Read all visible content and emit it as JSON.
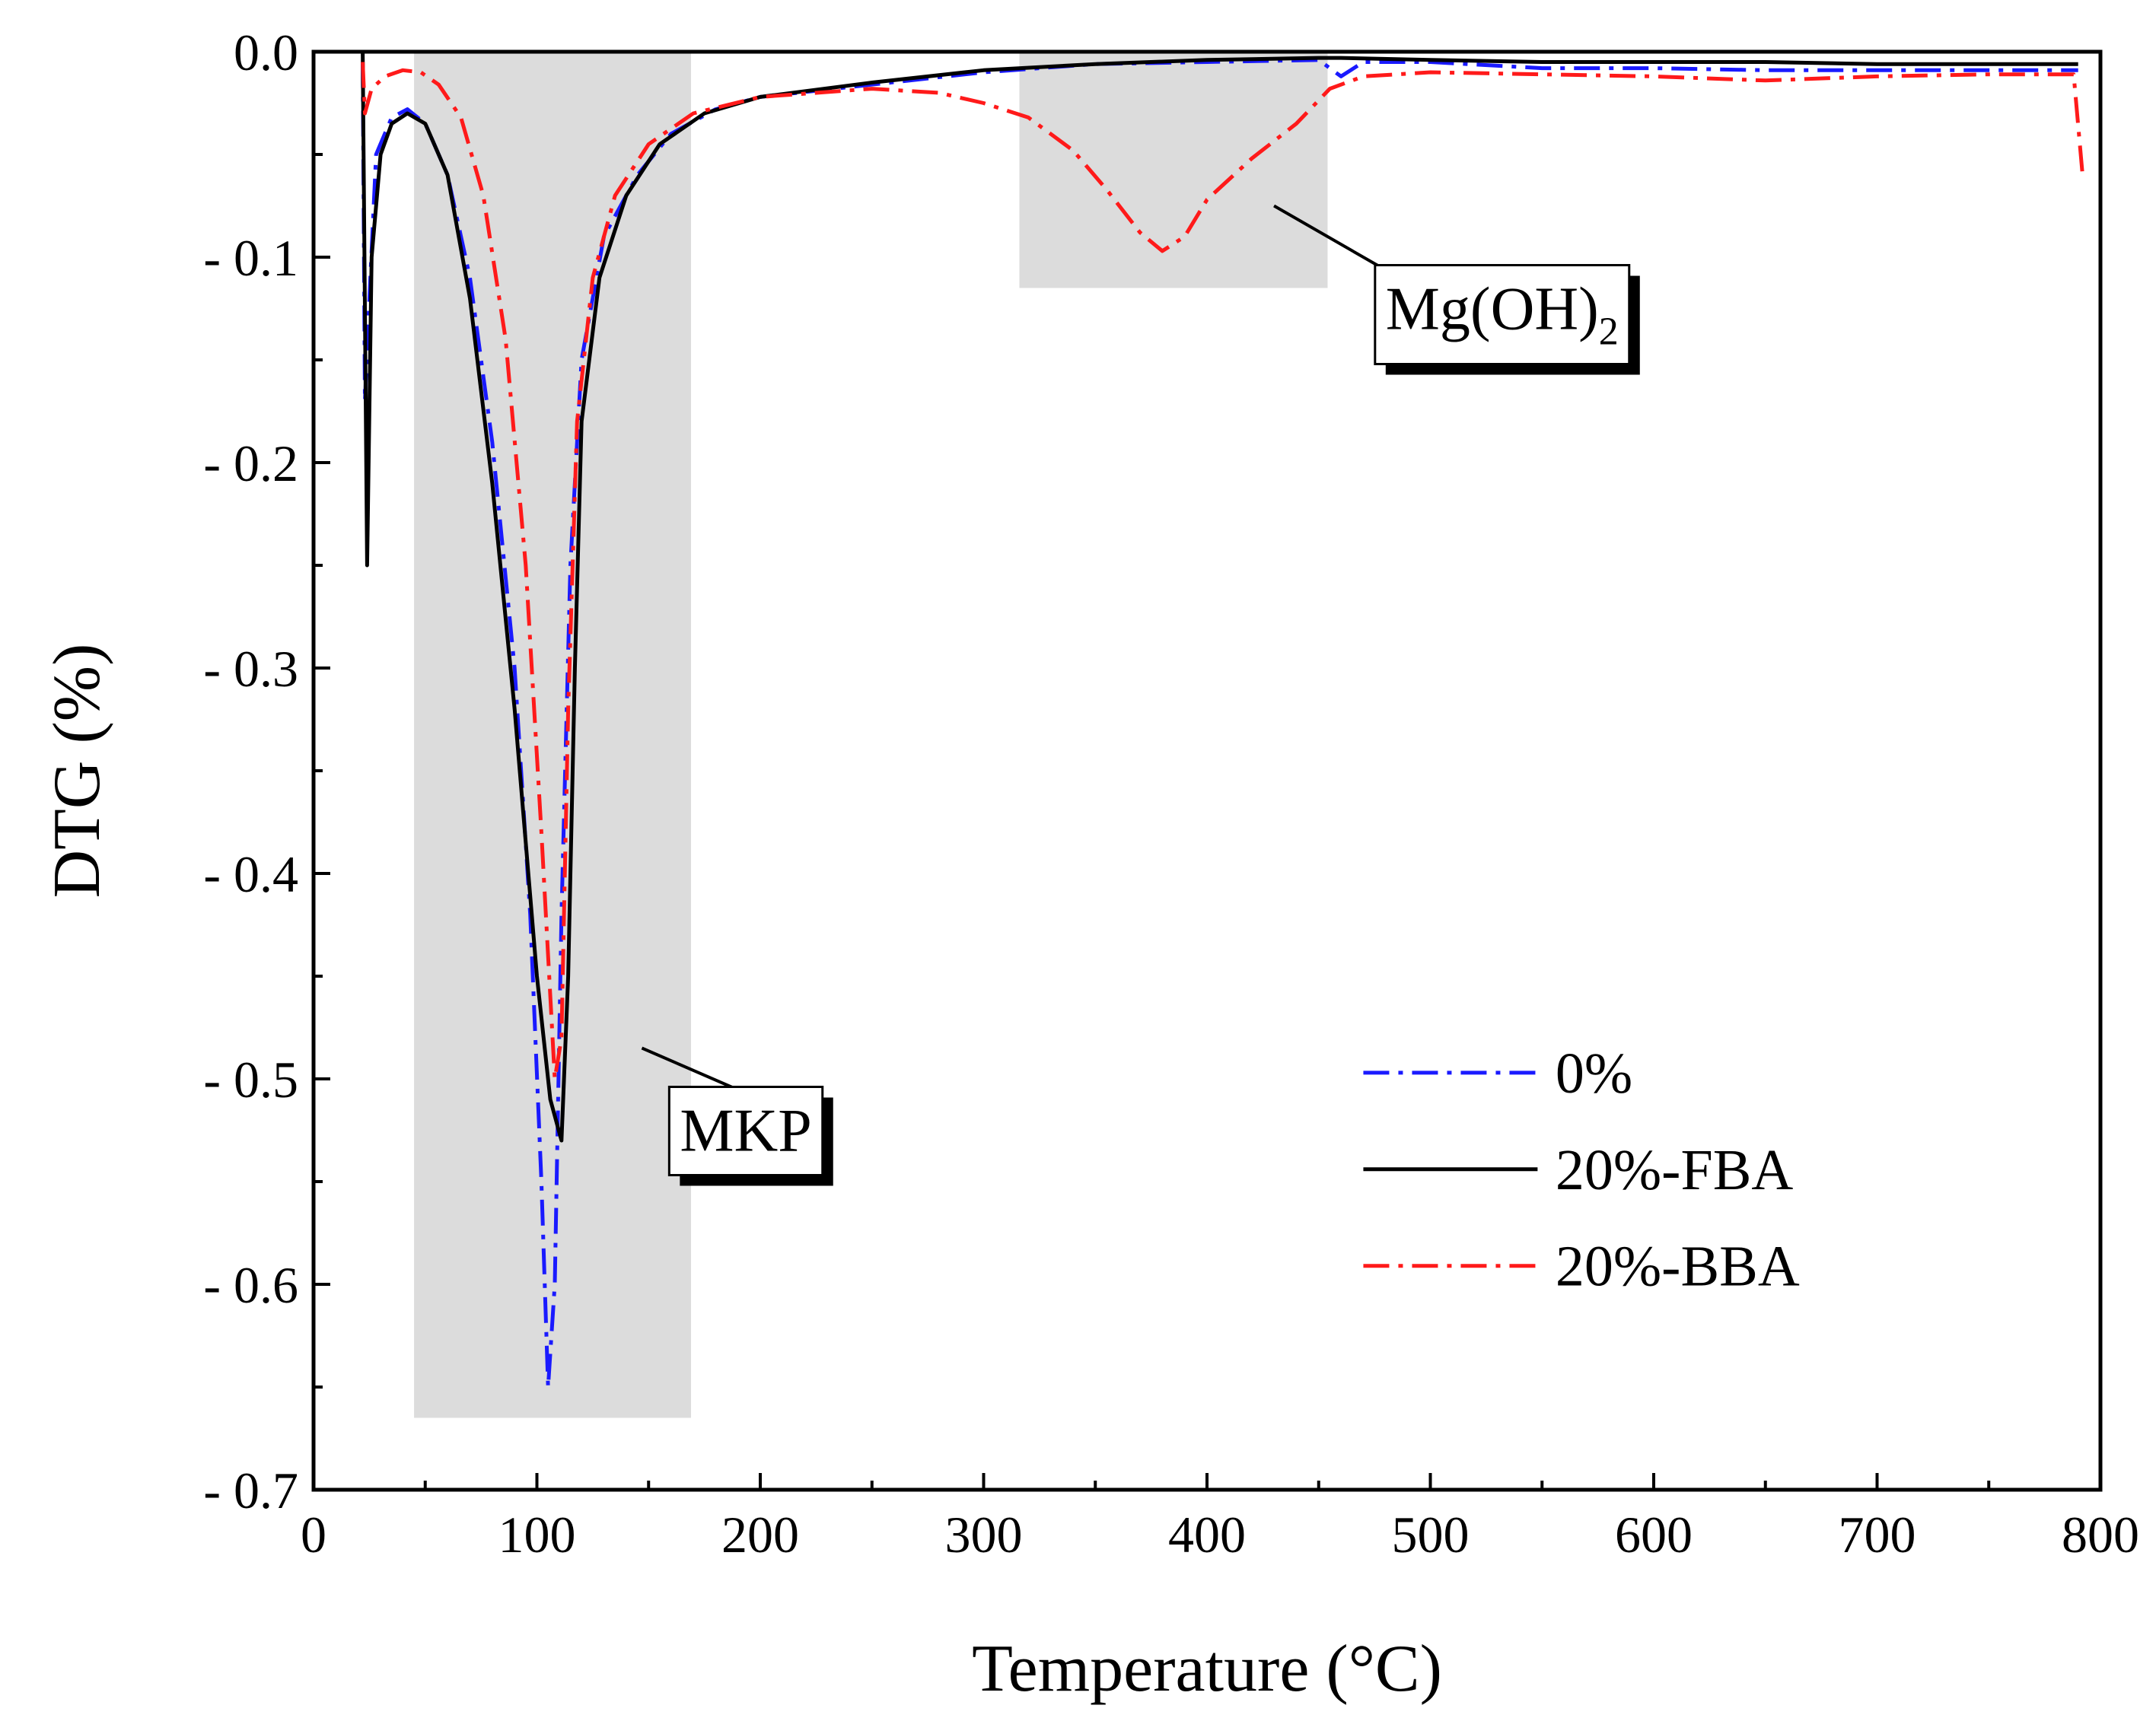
{
  "chart_data": {
    "type": "line",
    "title": "",
    "xlabel": "Temperature (°C)",
    "ylabel": "DTG (%)",
    "xlim": [
      0,
      800
    ],
    "ylim": [
      -0.7,
      0.0
    ],
    "x_ticks": [
      0,
      100,
      200,
      300,
      400,
      500,
      600,
      700,
      800
    ],
    "x_tick_labels": [
      "0",
      "100",
      "200",
      "300",
      "400",
      "500",
      "600",
      "700",
      "800"
    ],
    "y_ticks": [
      0.0,
      -0.1,
      -0.2,
      -0.3,
      -0.4,
      -0.5,
      -0.6,
      -0.7
    ],
    "y_tick_labels": [
      "0.0",
      "- 0.1",
      "- 0.2",
      "- 0.3",
      "- 0.4",
      "- 0.5",
      "- 0.6",
      "- 0.7"
    ],
    "grid": false,
    "legend_position": "lower-right",
    "series": [
      {
        "name": "0%",
        "color": "#1a1aff",
        "dash": "dash-dot",
        "points": [
          [
            22,
            -0.005
          ],
          [
            23,
            -0.17
          ],
          [
            25,
            -0.12
          ],
          [
            28,
            -0.05
          ],
          [
            35,
            -0.032
          ],
          [
            42,
            -0.028
          ],
          [
            50,
            -0.035
          ],
          [
            60,
            -0.06
          ],
          [
            70,
            -0.11
          ],
          [
            80,
            -0.19
          ],
          [
            90,
            -0.3
          ],
          [
            97,
            -0.42
          ],
          [
            102,
            -0.55
          ],
          [
            105,
            -0.65
          ],
          [
            108,
            -0.6
          ],
          [
            111,
            -0.42
          ],
          [
            115,
            -0.25
          ],
          [
            120,
            -0.15
          ],
          [
            130,
            -0.09
          ],
          [
            145,
            -0.06
          ],
          [
            160,
            -0.04
          ],
          [
            180,
            -0.028
          ],
          [
            200,
            -0.022
          ],
          [
            250,
            -0.016
          ],
          [
            300,
            -0.01
          ],
          [
            350,
            -0.006
          ],
          [
            400,
            -0.005
          ],
          [
            450,
            -0.004
          ],
          [
            460,
            -0.012
          ],
          [
            470,
            -0.005
          ],
          [
            500,
            -0.005
          ],
          [
            550,
            -0.008
          ],
          [
            600,
            -0.008
          ],
          [
            650,
            -0.009
          ],
          [
            700,
            -0.009
          ],
          [
            750,
            -0.009
          ],
          [
            790,
            -0.009
          ]
        ]
      },
      {
        "name": "20%-FBA",
        "color": "#000000",
        "dash": "solid",
        "points": [
          [
            22,
            0.0
          ],
          [
            24,
            -0.25
          ],
          [
            26,
            -0.1
          ],
          [
            30,
            -0.05
          ],
          [
            35,
            -0.035
          ],
          [
            42,
            -0.03
          ],
          [
            50,
            -0.035
          ],
          [
            60,
            -0.06
          ],
          [
            70,
            -0.12
          ],
          [
            80,
            -0.21
          ],
          [
            90,
            -0.32
          ],
          [
            100,
            -0.45
          ],
          [
            106,
            -0.51
          ],
          [
            111,
            -0.53
          ],
          [
            114,
            -0.45
          ],
          [
            117,
            -0.3
          ],
          [
            120,
            -0.18
          ],
          [
            128,
            -0.11
          ],
          [
            140,
            -0.07
          ],
          [
            155,
            -0.045
          ],
          [
            175,
            -0.03
          ],
          [
            200,
            -0.022
          ],
          [
            250,
            -0.015
          ],
          [
            300,
            -0.009
          ],
          [
            350,
            -0.006
          ],
          [
            400,
            -0.004
          ],
          [
            450,
            -0.003
          ],
          [
            460,
            -0.003
          ],
          [
            500,
            -0.004
          ],
          [
            550,
            -0.005
          ],
          [
            600,
            -0.005
          ],
          [
            650,
            -0.005
          ],
          [
            700,
            -0.006
          ],
          [
            750,
            -0.006
          ],
          [
            790,
            -0.006
          ]
        ]
      },
      {
        "name": "20%-BBA",
        "color": "#ff1a1a",
        "dash": "dash-dot",
        "points": [
          [
            22,
            -0.005
          ],
          [
            23,
            -0.03
          ],
          [
            26,
            -0.018
          ],
          [
            32,
            -0.012
          ],
          [
            40,
            -0.009
          ],
          [
            48,
            -0.01
          ],
          [
            56,
            -0.016
          ],
          [
            66,
            -0.032
          ],
          [
            76,
            -0.07
          ],
          [
            86,
            -0.14
          ],
          [
            95,
            -0.25
          ],
          [
            102,
            -0.38
          ],
          [
            108,
            -0.5
          ],
          [
            111,
            -0.48
          ],
          [
            114,
            -0.32
          ],
          [
            118,
            -0.18
          ],
          [
            125,
            -0.11
          ],
          [
            135,
            -0.07
          ],
          [
            150,
            -0.045
          ],
          [
            170,
            -0.03
          ],
          [
            200,
            -0.022
          ],
          [
            250,
            -0.018
          ],
          [
            280,
            -0.02
          ],
          [
            300,
            -0.025
          ],
          [
            320,
            -0.032
          ],
          [
            340,
            -0.048
          ],
          [
            355,
            -0.067
          ],
          [
            370,
            -0.088
          ],
          [
            380,
            -0.097
          ],
          [
            390,
            -0.09
          ],
          [
            400,
            -0.072
          ],
          [
            420,
            -0.052
          ],
          [
            440,
            -0.035
          ],
          [
            455,
            -0.018
          ],
          [
            470,
            -0.012
          ],
          [
            500,
            -0.01
          ],
          [
            550,
            -0.011
          ],
          [
            600,
            -0.012
          ],
          [
            650,
            -0.014
          ],
          [
            700,
            -0.012
          ],
          [
            750,
            -0.011
          ],
          [
            788,
            -0.011
          ],
          [
            792,
            -0.06
          ]
        ]
      }
    ],
    "shaded_regions": [
      {
        "x_range": [
          45,
          169
        ],
        "y_range": [
          0.0,
          -0.665
        ],
        "color": "#dcdcdc"
      },
      {
        "x_range": [
          316,
          454
        ],
        "y_range": [
          0.0,
          -0.115
        ],
        "color": "#dcdcdc"
      }
    ],
    "annotations": [
      {
        "text": "MKP",
        "subscript": "",
        "x": 164,
        "y": -0.535,
        "pointer_from": [
          147,
          -0.485
        ],
        "pointer_to": [
          200,
          -0.51
        ]
      },
      {
        "text": "Mg(OH)",
        "subscript": "2",
        "x": 480,
        "y": -0.135,
        "pointer_from": [
          430,
          -0.075
        ],
        "pointer_to": [
          478,
          -0.105
        ]
      }
    ]
  }
}
